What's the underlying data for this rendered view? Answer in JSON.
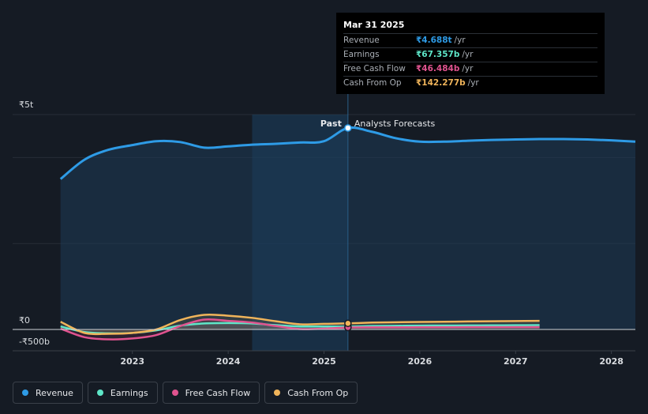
{
  "tooltip": {
    "date": "Mar 31 2025",
    "rows": [
      {
        "name": "Revenue",
        "value": "₹4.688t",
        "unit": "/yr",
        "color": "#2e9be6"
      },
      {
        "name": "Earnings",
        "value": "₹67.357b",
        "unit": "/yr",
        "color": "#5ee6c8"
      },
      {
        "name": "Free Cash Flow",
        "value": "₹46.484b",
        "unit": "/yr",
        "color": "#e0538f"
      },
      {
        "name": "Cash From Op",
        "value": "₹142.277b",
        "unit": "/yr",
        "color": "#f0b45a"
      }
    ]
  },
  "labels": {
    "past": "Past",
    "forecast": "Analysts Forecasts"
  },
  "legend": [
    {
      "name": "Revenue",
      "color": "#2e9be6"
    },
    {
      "name": "Earnings",
      "color": "#5ee6c8"
    },
    {
      "name": "Free Cash Flow",
      "color": "#e0538f"
    },
    {
      "name": "Cash From Op",
      "color": "#f0b45a"
    }
  ],
  "chart_data": {
    "type": "area",
    "y_ticks": [
      {
        "value": 5000,
        "label": "₹5t"
      },
      {
        "value": 0,
        "label": "₹0"
      },
      {
        "value": -500,
        "label": "-₹500b"
      }
    ],
    "x_ticks": [
      {
        "value": 2023,
        "label": "2023"
      },
      {
        "value": 2024,
        "label": "2024"
      },
      {
        "value": 2025,
        "label": "2025"
      },
      {
        "value": 2026,
        "label": "2026"
      },
      {
        "value": 2027,
        "label": "2027"
      },
      {
        "value": 2028,
        "label": "2028"
      }
    ],
    "xlim": [
      2021.75,
      2028.25
    ],
    "ylim": [
      -500,
      5000
    ],
    "past_end": 2025.25,
    "highlight_start": 2024.25,
    "units": "₹ billions",
    "series": [
      {
        "name": "Revenue",
        "color": "#2e9be6",
        "x": [
          2022.25,
          2022.5,
          2022.75,
          2023.0,
          2023.25,
          2023.5,
          2023.75,
          2024.0,
          2024.25,
          2024.5,
          2024.75,
          2025.0,
          2025.25,
          2025.5,
          2025.75,
          2026.0,
          2026.25,
          2026.5,
          2026.75,
          2027.0,
          2027.25,
          2027.5,
          2027.75,
          2028.0,
          2028.25
        ],
        "y": [
          3500,
          3950,
          4180,
          4290,
          4380,
          4360,
          4230,
          4260,
          4300,
          4320,
          4350,
          4380,
          4688,
          4600,
          4450,
          4370,
          4370,
          4390,
          4410,
          4420,
          4430,
          4430,
          4420,
          4400,
          4370
        ]
      },
      {
        "name": "Earnings",
        "color": "#5ee6c8",
        "x": [
          2022.25,
          2022.5,
          2022.75,
          2023.0,
          2023.25,
          2023.5,
          2023.75,
          2024.0,
          2024.25,
          2024.5,
          2024.75,
          2025.0,
          2025.25,
          2025.5,
          2025.75,
          2026.0,
          2026.25,
          2026.5,
          2026.75,
          2027.0,
          2027.25
        ],
        "y": [
          70,
          -60,
          -90,
          -80,
          -20,
          90,
          140,
          150,
          140,
          100,
          70,
          70,
          67,
          80,
          85,
          90,
          92,
          94,
          96,
          98,
          100
        ]
      },
      {
        "name": "Free Cash Flow",
        "color": "#e0538f",
        "x": [
          2022.25,
          2022.5,
          2022.75,
          2023.0,
          2023.25,
          2023.5,
          2023.75,
          2024.0,
          2024.25,
          2024.5,
          2024.75,
          2025.0,
          2025.25,
          2025.5,
          2025.75,
          2026.0,
          2026.25,
          2026.5,
          2026.75,
          2027.0,
          2027.25
        ],
        "y": [
          20,
          -180,
          -230,
          -210,
          -130,
          80,
          230,
          200,
          160,
          80,
          10,
          20,
          46,
          50,
          50,
          52,
          52,
          54,
          54,
          56,
          56
        ]
      },
      {
        "name": "Cash From Op",
        "color": "#f0b45a",
        "x": [
          2022.25,
          2022.5,
          2022.75,
          2023.0,
          2023.25,
          2023.5,
          2023.75,
          2024.0,
          2024.25,
          2024.5,
          2024.75,
          2025.0,
          2025.25,
          2025.5,
          2025.75,
          2026.0,
          2026.25,
          2026.5,
          2026.75,
          2027.0,
          2027.25
        ],
        "y": [
          180,
          -80,
          -100,
          -80,
          0,
          220,
          340,
          320,
          270,
          190,
          120,
          130,
          142,
          160,
          168,
          175,
          180,
          185,
          190,
          195,
          200
        ]
      }
    ]
  }
}
